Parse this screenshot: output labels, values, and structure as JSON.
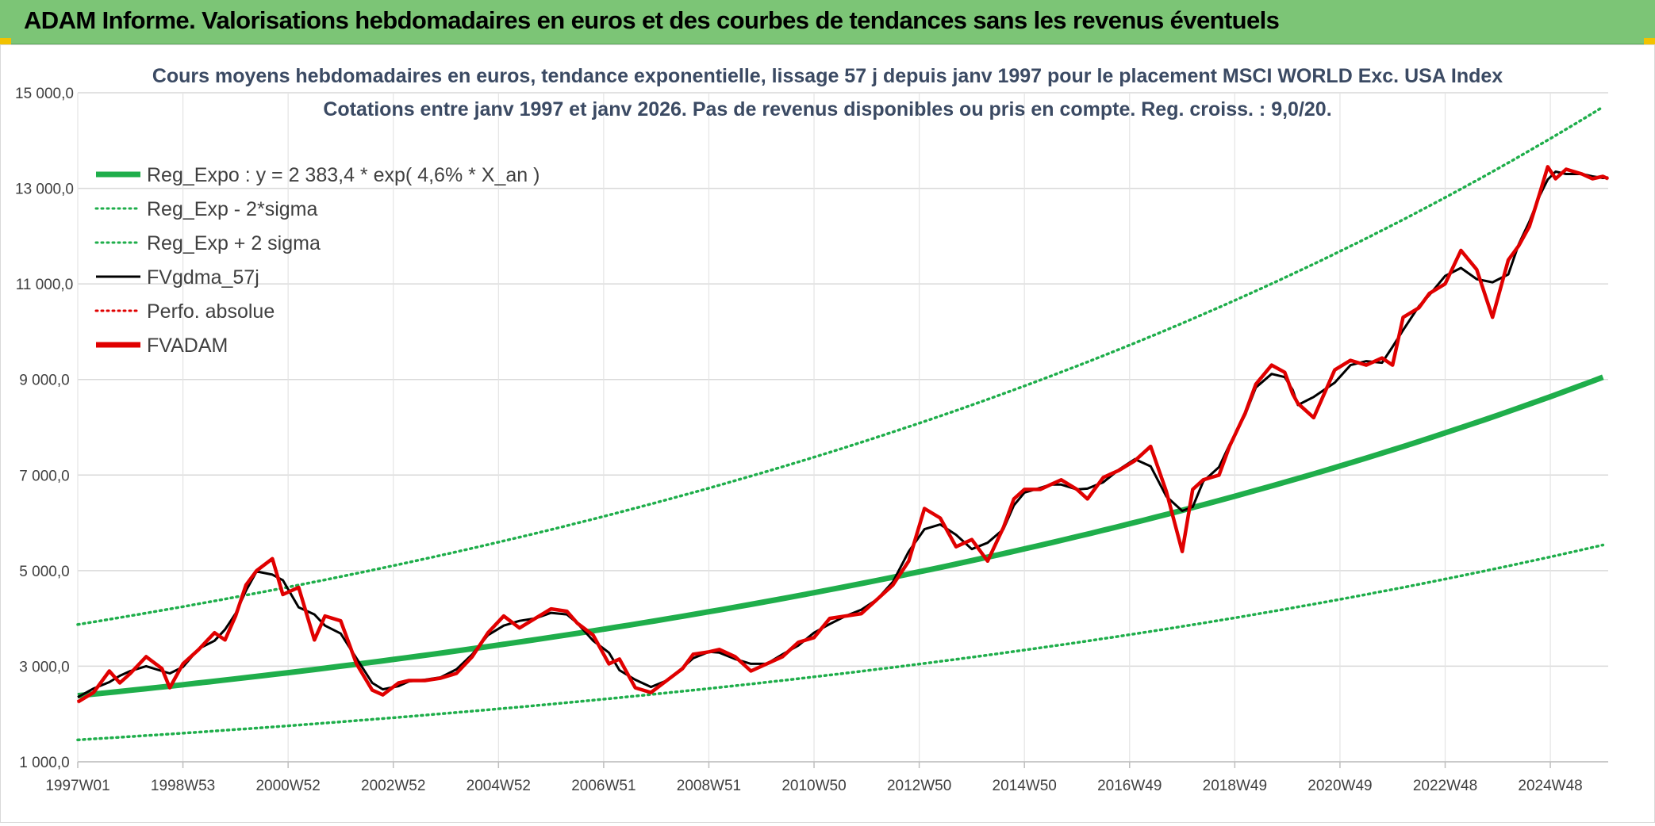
{
  "header": {
    "title": "ADAM Informe. Valorisations hebdomadaires en euros et des courbes de tendances sans les revenus éventuels"
  },
  "colors": {
    "banner": "#7cc576",
    "trend": "#1fae4b",
    "sigma_bands": "#1fae4b",
    "moving_average": "#000000",
    "price": "#e00000",
    "accent_corner": "#f2c200"
  },
  "chart_data": {
    "type": "line",
    "title": "Cours moyens hebdomadaires en euros, tendance exponentielle, lissage 57 j depuis janv 1997 pour le placement MSCI WORLD Exc. USA Index",
    "subtitle": "Cotations entre janv 1997 et janv 2026. Pas de revenus disponibles ou pris en compte. Reg. croiss. : 9,0/20.",
    "xlabel": "",
    "ylabel": "",
    "ylim": [
      1000,
      15000
    ],
    "y_ticks": [
      "1 000,0",
      "3 000,0",
      "5 000,0",
      "7 000,0",
      "9 000,0",
      "11 000,0",
      "13 000,0",
      "15 000,0"
    ],
    "x_ticks": [
      "1997W01",
      "1998W53",
      "2000W52",
      "2002W52",
      "2004W52",
      "2006W51",
      "2008W51",
      "2010W50",
      "2012W50",
      "2014W50",
      "2016W49",
      "2018W49",
      "2020W49",
      "2022W48",
      "2024W48"
    ],
    "x_range_years": [
      1997.0,
      2026.1
    ],
    "grid": true,
    "legend_position": "top-left",
    "legend": [
      {
        "label": "Reg_Expo : y = 2 383,4 * exp( 4,6% *  X_an )",
        "style": "solid-thick",
        "color": "#1fae4b"
      },
      {
        "label": "Reg_Exp - 2*sigma",
        "style": "dotted",
        "color": "#1fae4b"
      },
      {
        "label": "Reg_Exp + 2 sigma",
        "style": "dotted",
        "color": "#1fae4b"
      },
      {
        "label": "FVgdma_57j",
        "style": "solid",
        "color": "#000000"
      },
      {
        "label": "Perfo. absolue",
        "style": "dotted",
        "color": "#e00000"
      },
      {
        "label": "FVADAM",
        "style": "solid-thick",
        "color": "#e00000"
      }
    ],
    "trend_model": {
      "a": 2383.4,
      "rate": 0.046,
      "lower_factor": 0.612,
      "upper_factor": 1.625
    },
    "series": [
      {
        "name": "FVADAM",
        "x": [
          1997.0,
          1997.3,
          1997.6,
          1997.8,
          1998.0,
          1998.3,
          1998.6,
          1998.75,
          1999.0,
          1999.3,
          1999.6,
          1999.8,
          2000.0,
          2000.2,
          2000.4,
          2000.7,
          2000.9,
          2001.2,
          2001.5,
          2001.7,
          2002.0,
          2002.3,
          2002.6,
          2002.8,
          2003.1,
          2003.3,
          2003.6,
          2003.9,
          2004.2,
          2004.5,
          2004.8,
          2005.1,
          2005.4,
          2005.7,
          2006.0,
          2006.3,
          2006.5,
          2006.8,
          2007.1,
          2007.3,
          2007.6,
          2007.9,
          2008.2,
          2008.5,
          2008.7,
          2009.0,
          2009.2,
          2009.5,
          2009.8,
          2010.1,
          2010.4,
          2010.7,
          2011.0,
          2011.3,
          2011.6,
          2011.9,
          2012.2,
          2012.5,
          2012.8,
          2013.1,
          2013.4,
          2013.7,
          2014.0,
          2014.3,
          2014.6,
          2014.8,
          2015.0,
          2015.3,
          2015.5,
          2015.7,
          2016.0,
          2016.2,
          2016.5,
          2016.8,
          2017.1,
          2017.4,
          2017.7,
          2018.0,
          2018.2,
          2018.4,
          2018.7,
          2018.9,
          2019.2,
          2019.4,
          2019.7,
          2019.95,
          2020.1,
          2020.2,
          2020.5,
          2020.9,
          2021.2,
          2021.5,
          2021.8,
          2022.0,
          2022.2,
          2022.5,
          2022.7,
          2023.0,
          2023.3,
          2023.6,
          2023.9,
          2024.2,
          2024.4,
          2024.6,
          2024.8,
          2024.95,
          2025.1,
          2025.3,
          2025.6,
          2025.8,
          2026.0,
          2026.1
        ],
        "values": [
          2250,
          2450,
          2900,
          2650,
          2850,
          3200,
          2950,
          2550,
          3050,
          3350,
          3700,
          3550,
          4050,
          4700,
          5000,
          5250,
          4500,
          4650,
          3550,
          4050,
          3950,
          3050,
          2500,
          2400,
          2650,
          2700,
          2700,
          2750,
          2850,
          3200,
          3700,
          4050,
          3800,
          4000,
          4200,
          4150,
          3900,
          3650,
          3050,
          3150,
          2550,
          2450,
          2700,
          2950,
          3250,
          3300,
          3350,
          3200,
          2900,
          3050,
          3200,
          3500,
          3600,
          4000,
          4050,
          4100,
          4400,
          4700,
          5200,
          6300,
          6100,
          5500,
          5650,
          5200,
          5900,
          6500,
          6700,
          6700,
          6800,
          6900,
          6700,
          6500,
          6950,
          7100,
          7300,
          7600,
          6650,
          5400,
          6700,
          6900,
          7000,
          7600,
          8300,
          8900,
          9300,
          9150,
          8700,
          8500,
          8200,
          9200,
          9400,
          9300,
          9450,
          9300,
          10300,
          10500,
          10800,
          11000,
          11700,
          11300,
          10300,
          11500,
          11800,
          12200,
          12900,
          13450,
          13200,
          13400,
          13300,
          13200,
          13250,
          13200
        ]
      }
    ]
  }
}
